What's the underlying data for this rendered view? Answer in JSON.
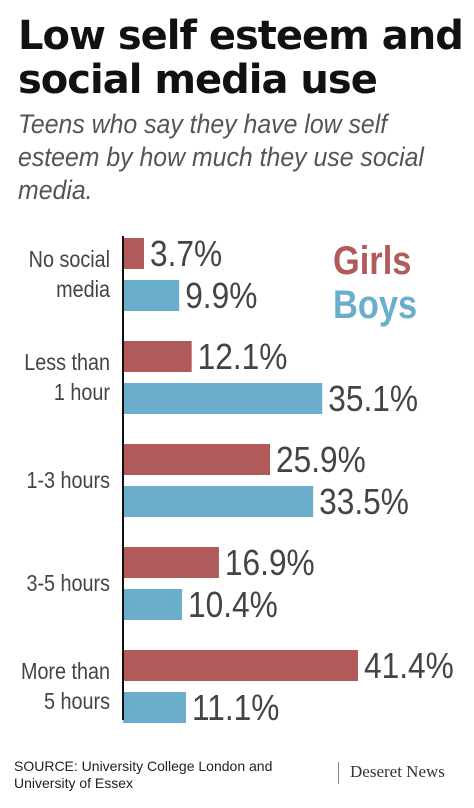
{
  "title_lines": [
    "Low self esteem and",
    "social media use"
  ],
  "subtitle_lines": [
    "Teens who say they have low self",
    "esteem by how much they use social",
    "media."
  ],
  "colors": {
    "girls": "#b05a5a",
    "boys": "#6aaecb",
    "axis": "#111111",
    "text": "#444444"
  },
  "chart_data": {
    "type": "bar",
    "orientation": "horizontal",
    "categories": [
      [
        "No social",
        "media"
      ],
      [
        "Less than",
        "1 hour"
      ],
      [
        "1-3 hours"
      ],
      [
        "3-5 hours"
      ],
      [
        "More than",
        "5 hours"
      ]
    ],
    "series": [
      {
        "name": "Girls",
        "values": [
          3.7,
          12.1,
          25.9,
          16.9,
          41.4
        ],
        "labels": [
          "3.7%",
          "12.1%",
          "25.9%",
          "16.9%",
          "41.4%"
        ]
      },
      {
        "name": "Boys",
        "values": [
          9.9,
          35.1,
          33.5,
          10.4,
          11.1
        ],
        "labels": [
          "9.9%",
          "35.1%",
          "33.5%",
          "10.4%",
          "11.1%"
        ]
      }
    ],
    "xlim": [
      0,
      41.4
    ],
    "legend": "top-right"
  },
  "source_lines": [
    "SOURCE: University College London and",
    "University of Essex"
  ],
  "brand": "Deseret News"
}
